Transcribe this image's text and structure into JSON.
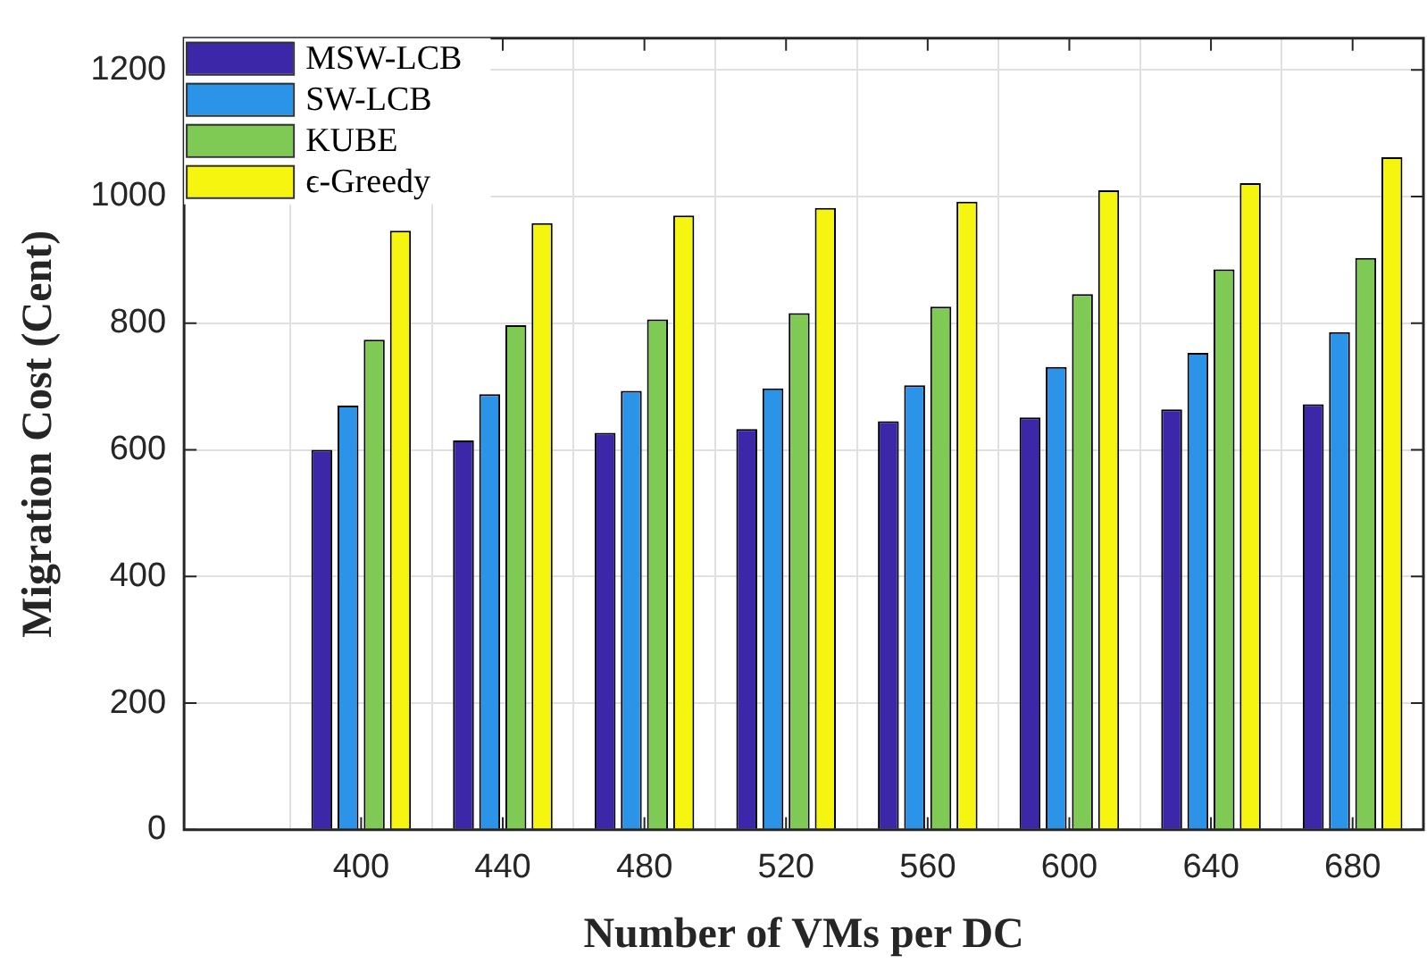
{
  "chart_data": {
    "type": "bar",
    "xlabel": "Number of VMs per DC",
    "ylabel": "Migration Cost (Cent)",
    "x": [
      400,
      440,
      480,
      520,
      560,
      600,
      640,
      680
    ],
    "xlim": [
      350,
      700
    ],
    "xticks": [
      400,
      440,
      480,
      520,
      560,
      600,
      640,
      680
    ],
    "ylim": [
      0,
      1250
    ],
    "yticks": [
      0,
      200,
      400,
      600,
      800,
      1000,
      1200
    ],
    "grid": true,
    "legend": "top left",
    "series": [
      {
        "name": "MSW-LCB",
        "color": "#3b27a8",
        "values": [
          600,
          615,
          627,
          633,
          645,
          651,
          664,
          672
        ]
      },
      {
        "name": "SW-LCB",
        "color": "#2b94e8",
        "values": [
          670,
          688,
          693,
          697,
          702,
          731,
          753,
          786
        ]
      },
      {
        "name": "KUBE",
        "color": "#7fca55",
        "values": [
          774,
          797,
          806,
          816,
          826,
          846,
          885,
          903
        ]
      },
      {
        "name": "ϵ-Greedy",
        "color": "#f5f50f",
        "values": [
          946,
          958,
          970,
          982,
          992,
          1010,
          1021,
          1062
        ]
      }
    ]
  }
}
